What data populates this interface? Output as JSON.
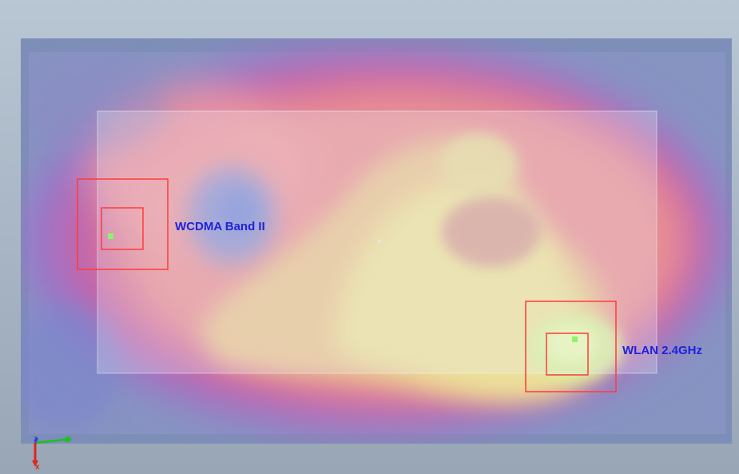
{
  "colors": {
    "background": "#a9b7c6",
    "outer_board": "#7d8fb8",
    "inner_board": "#b6bad8",
    "field_high": "#ece79a",
    "field_mid": "#e9a4a6",
    "field_edge": "#d25a9b",
    "field_low": "#9478c9",
    "marker_box": "#ff3b3b",
    "probe_point": "#8af56a",
    "label_text": "#1f23d8",
    "axis_x": "#e0241c",
    "axis_y": "#19c21a",
    "axis_z": "#2f3ad8"
  },
  "labels": {
    "wcdma": "WCDMA Band II",
    "wlan": "WLAN 2.4GHz"
  },
  "axes": {
    "x": "x",
    "y": "y",
    "z": "z"
  },
  "icons": {
    "orientation": "axis-triad-icon"
  }
}
